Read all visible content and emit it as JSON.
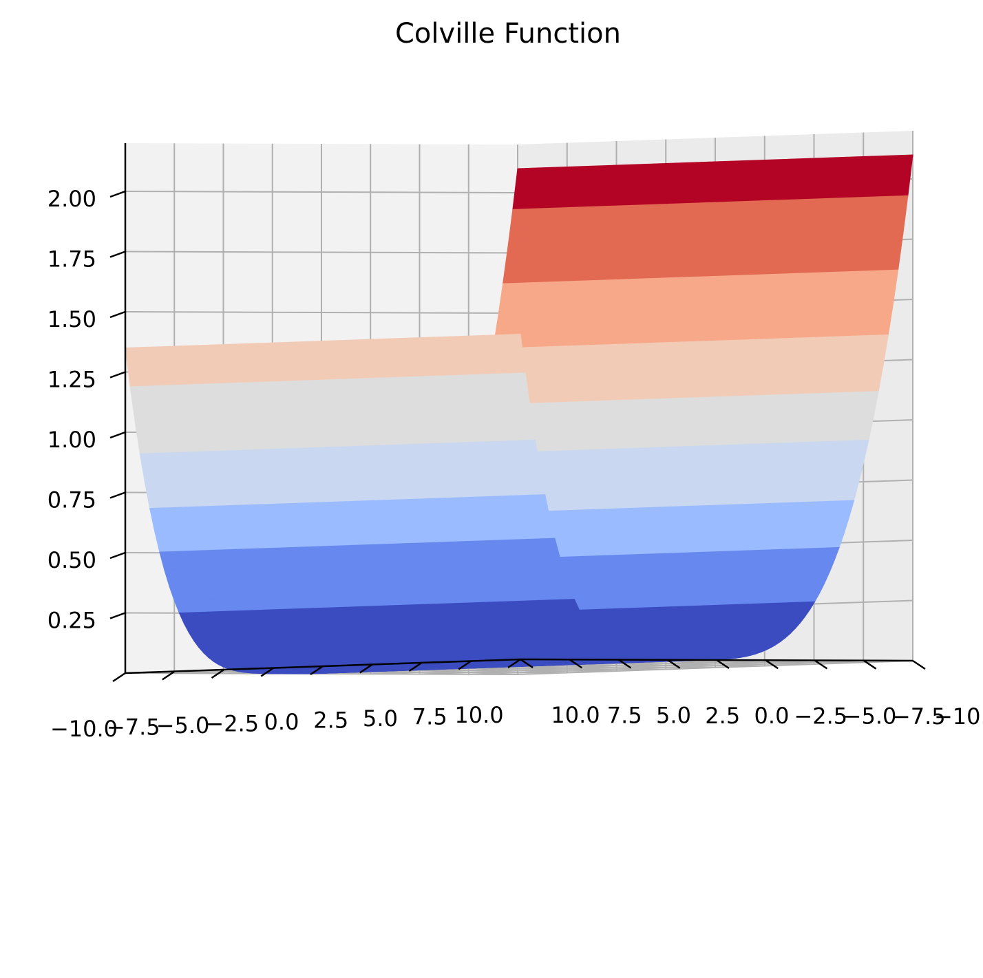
{
  "chart_data": {
    "type": "surface3d",
    "title": "Colville Function",
    "x_axis": {
      "ticks": [
        -10.0,
        -7.5,
        -5.0,
        -2.5,
        0.0,
        2.5,
        5.0,
        7.5,
        10.0
      ],
      "tick_labels": [
        "−10.0",
        "−7.5",
        "−5.0",
        "−2.5",
        "0.0",
        "2.5",
        "5.0",
        "7.5",
        "10.0"
      ],
      "range": [
        -10,
        10
      ]
    },
    "y_axis": {
      "ticks": [
        -10.0,
        -7.5,
        -5.0,
        -2.5,
        0.0,
        2.5,
        5.0,
        7.5,
        10.0
      ],
      "tick_labels": [
        "−10.0",
        "−7.5",
        "−5.0",
        "−2.5",
        "0.0",
        "2.5",
        "5.0",
        "7.5",
        "10.0"
      ],
      "range": [
        -10,
        10
      ]
    },
    "z_axis": {
      "ticks": [
        0.25,
        0.5,
        0.75,
        1.0,
        1.25,
        1.5,
        1.75,
        2.0
      ],
      "tick_labels": [
        "0.25",
        "0.50",
        "0.75",
        "1.00",
        "1.25",
        "1.50",
        "1.75",
        "2.00"
      ],
      "range": [
        0.0,
        2.2
      ]
    },
    "surface": {
      "description_values": {
        "z_min": 0.0,
        "z_max_at_y_-10": 2.1,
        "z_at_y_10": 1.35
      },
      "colormap": "coolwarm",
      "grid": true
    }
  },
  "colors": {
    "pane": "#f2f2f2",
    "grid": "#b0b0b0",
    "axis": "#000000",
    "cmap": [
      "#3b4cc0",
      "#6788ee",
      "#9abbff",
      "#c9d7f0",
      "#dddddd",
      "#f2cbb7",
      "#f7a889",
      "#e26952",
      "#b40426"
    ]
  }
}
